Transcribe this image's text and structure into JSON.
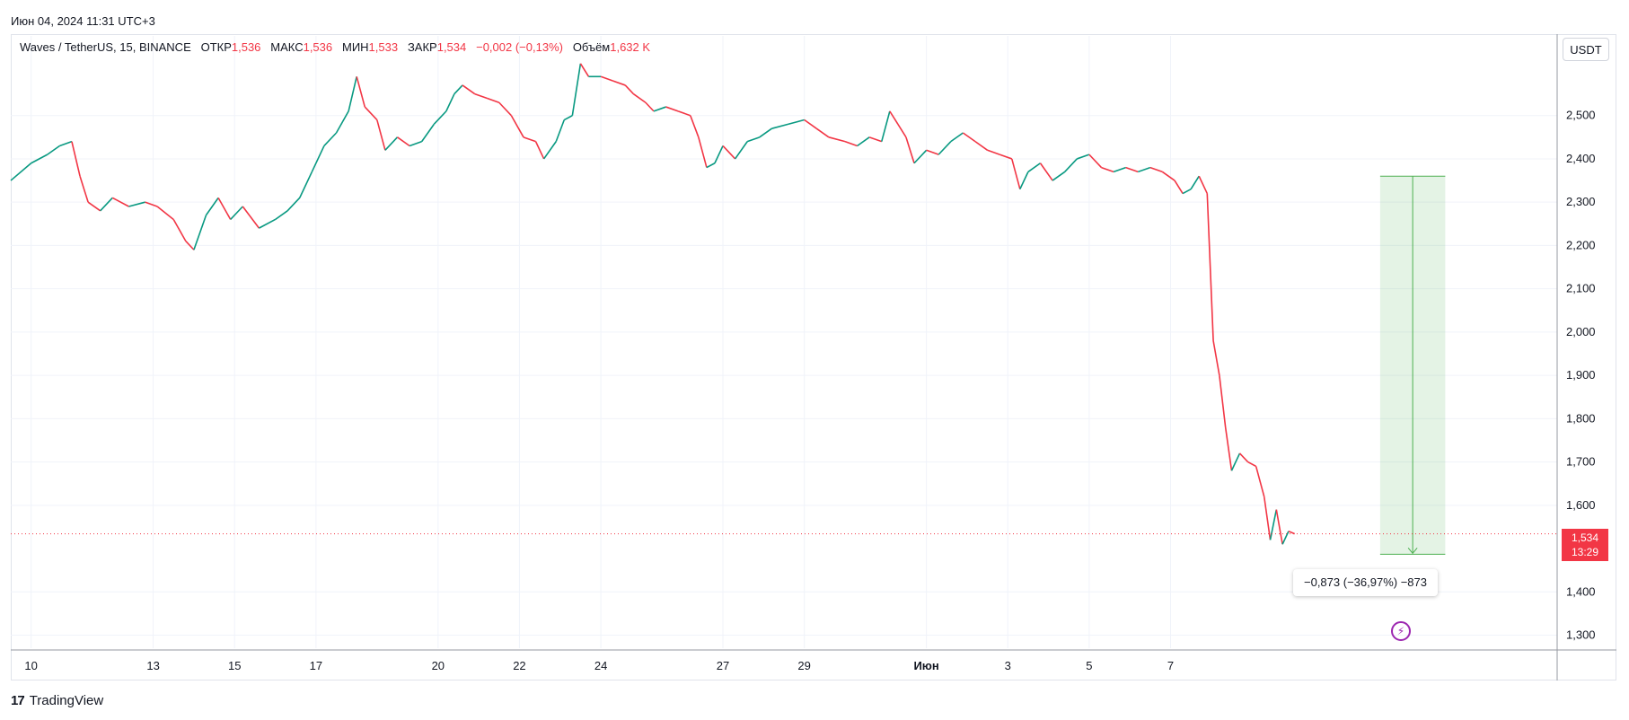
{
  "header": {
    "timestamp": "Июн 04, 2024 11:31 UTC+3"
  },
  "legend": {
    "symbol": "Waves / TetherUS, 15, BINANCE",
    "open_label": "ОТКР",
    "open_value": "1,536",
    "high_label": "МАКС",
    "high_value": "1,536",
    "low_label": "МИН",
    "low_value": "1,533",
    "close_label": "ЗАКР",
    "close_value": "1,534",
    "change": "−0,002 (−0,13%)",
    "volume_label": "Объём",
    "volume_value": "1,632 K"
  },
  "currency_button": "USDT",
  "price_badge": {
    "price": "1,534",
    "countdown": "13:29"
  },
  "measure": {
    "label": "−0,873 (−36,97%) −873",
    "from_price": 2.36,
    "to_price": 1.487,
    "from_day": 33.15,
    "to_day": 34.75
  },
  "logo_text": "TradingView",
  "colors": {
    "up": "#089981",
    "down": "#f23645",
    "measure_fill": "#4caf50",
    "price_line": "#f23645"
  },
  "chart_data": {
    "type": "line",
    "title": "Waves / TetherUS, 15, BINANCE",
    "xlabel": "",
    "ylabel": "",
    "x_day_range": [
      -0.5,
      37.5
    ],
    "ylim": [
      1.27,
      2.63
    ],
    "y_ticks": [
      {
        "value": 2.5,
        "label": "2,500"
      },
      {
        "value": 2.4,
        "label": "2,400"
      },
      {
        "value": 2.3,
        "label": "2,300"
      },
      {
        "value": 2.2,
        "label": "2,200"
      },
      {
        "value": 2.1,
        "label": "2,100"
      },
      {
        "value": 2.0,
        "label": "2,000"
      },
      {
        "value": 1.9,
        "label": "1,900"
      },
      {
        "value": 1.8,
        "label": "1,800"
      },
      {
        "value": 1.7,
        "label": "1,700"
      },
      {
        "value": 1.6,
        "label": "1,600"
      },
      {
        "value": 1.4,
        "label": "1,400"
      },
      {
        "value": 1.3,
        "label": "1,300"
      }
    ],
    "x_ticks": [
      {
        "day": 0,
        "label": "10"
      },
      {
        "day": 3,
        "label": "13"
      },
      {
        "day": 5,
        "label": "15"
      },
      {
        "day": 7,
        "label": "17"
      },
      {
        "day": 10,
        "label": "20"
      },
      {
        "day": 12,
        "label": "22"
      },
      {
        "day": 14,
        "label": "24"
      },
      {
        "day": 17,
        "label": "27"
      },
      {
        "day": 19,
        "label": "29"
      },
      {
        "day": 22,
        "label": "Июн"
      },
      {
        "day": 24,
        "label": "3"
      },
      {
        "day": 26,
        "label": "5"
      },
      {
        "day": 28,
        "label": "7"
      }
    ],
    "x_tick_day_offsets": [
      0,
      3,
      5,
      7,
      10,
      12,
      14,
      17,
      19,
      22,
      24,
      26,
      28
    ],
    "series": [
      {
        "points": [
          [
            -0.5,
            2.35
          ],
          [
            0.0,
            2.39
          ],
          [
            0.4,
            2.41
          ],
          [
            0.7,
            2.43
          ],
          [
            1.0,
            2.44
          ],
          [
            1.2,
            2.36
          ],
          [
            1.4,
            2.3
          ],
          [
            1.7,
            2.28
          ],
          [
            2.0,
            2.31
          ],
          [
            2.4,
            2.29
          ],
          [
            2.8,
            2.3
          ],
          [
            3.1,
            2.29
          ],
          [
            3.5,
            2.26
          ],
          [
            3.8,
            2.21
          ],
          [
            4.0,
            2.19
          ],
          [
            4.3,
            2.27
          ],
          [
            4.6,
            2.31
          ],
          [
            4.9,
            2.26
          ],
          [
            5.2,
            2.29
          ],
          [
            5.6,
            2.24
          ],
          [
            6.0,
            2.26
          ],
          [
            6.3,
            2.28
          ],
          [
            6.6,
            2.31
          ],
          [
            6.9,
            2.37
          ],
          [
            7.2,
            2.43
          ],
          [
            7.5,
            2.46
          ],
          [
            7.8,
            2.51
          ],
          [
            8.0,
            2.59
          ],
          [
            8.2,
            2.52
          ],
          [
            8.5,
            2.49
          ],
          [
            8.7,
            2.42
          ],
          [
            9.0,
            2.45
          ],
          [
            9.3,
            2.43
          ],
          [
            9.6,
            2.44
          ],
          [
            9.9,
            2.48
          ],
          [
            10.2,
            2.51
          ],
          [
            10.4,
            2.55
          ],
          [
            10.6,
            2.57
          ],
          [
            10.9,
            2.55
          ],
          [
            11.2,
            2.54
          ],
          [
            11.5,
            2.53
          ],
          [
            11.8,
            2.5
          ],
          [
            12.1,
            2.45
          ],
          [
            12.4,
            2.44
          ],
          [
            12.6,
            2.4
          ],
          [
            12.9,
            2.44
          ],
          [
            13.1,
            2.49
          ],
          [
            13.3,
            2.5
          ],
          [
            13.5,
            2.62
          ],
          [
            13.7,
            2.59
          ],
          [
            14.0,
            2.59
          ],
          [
            14.3,
            2.58
          ],
          [
            14.6,
            2.57
          ],
          [
            14.8,
            2.55
          ],
          [
            15.1,
            2.53
          ],
          [
            15.3,
            2.51
          ],
          [
            15.6,
            2.52
          ],
          [
            15.9,
            2.51
          ],
          [
            16.2,
            2.5
          ],
          [
            16.4,
            2.45
          ],
          [
            16.6,
            2.38
          ],
          [
            16.8,
            2.39
          ],
          [
            17.0,
            2.43
          ],
          [
            17.3,
            2.4
          ],
          [
            17.6,
            2.44
          ],
          [
            17.9,
            2.45
          ],
          [
            18.2,
            2.47
          ],
          [
            18.6,
            2.48
          ],
          [
            19.0,
            2.49
          ],
          [
            19.3,
            2.47
          ],
          [
            19.6,
            2.45
          ],
          [
            20.0,
            2.44
          ],
          [
            20.3,
            2.43
          ],
          [
            20.6,
            2.45
          ],
          [
            20.9,
            2.44
          ],
          [
            21.1,
            2.51
          ],
          [
            21.3,
            2.48
          ],
          [
            21.5,
            2.45
          ],
          [
            21.7,
            2.39
          ],
          [
            22.0,
            2.42
          ],
          [
            22.3,
            2.41
          ],
          [
            22.6,
            2.44
          ],
          [
            22.9,
            2.46
          ],
          [
            23.2,
            2.44
          ],
          [
            23.5,
            2.42
          ],
          [
            23.8,
            2.41
          ],
          [
            24.1,
            2.4
          ],
          [
            24.3,
            2.33
          ],
          [
            24.5,
            2.37
          ],
          [
            24.8,
            2.39
          ],
          [
            25.1,
            2.35
          ],
          [
            25.4,
            2.37
          ],
          [
            25.7,
            2.4
          ],
          [
            26.0,
            2.41
          ],
          [
            26.3,
            2.38
          ],
          [
            26.6,
            2.37
          ],
          [
            26.9,
            2.38
          ],
          [
            27.2,
            2.37
          ],
          [
            27.5,
            2.38
          ],
          [
            27.8,
            2.37
          ],
          [
            28.1,
            2.35
          ],
          [
            28.3,
            2.32
          ],
          [
            28.5,
            2.33
          ],
          [
            28.7,
            2.36
          ],
          [
            28.9,
            2.32
          ],
          [
            29.05,
            1.98
          ],
          [
            29.2,
            1.9
          ],
          [
            29.35,
            1.78
          ],
          [
            29.5,
            1.68
          ],
          [
            29.7,
            1.72
          ],
          [
            29.9,
            1.7
          ],
          [
            30.1,
            1.69
          ],
          [
            30.3,
            1.62
          ],
          [
            30.45,
            1.52
          ],
          [
            30.6,
            1.59
          ],
          [
            30.75,
            1.51
          ],
          [
            30.9,
            1.54
          ],
          [
            31.05,
            1.534
          ]
        ]
      }
    ],
    "last_price": 1.534
  }
}
